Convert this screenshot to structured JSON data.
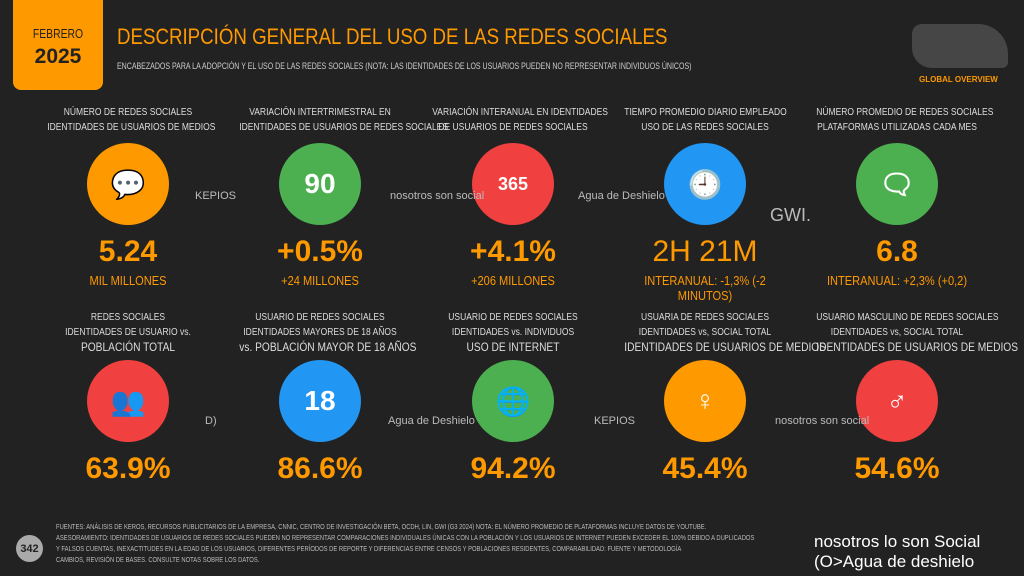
{
  "header": {
    "month": "FEBRERO",
    "year": "2025",
    "title": "DESCRIPCIÓN GENERAL DEL USO DE LAS REDES SOCIALES",
    "subtitle": "ENCABEZADOS PARA LA ADOPCIÓN Y EL USO DE LAS REDES SOCIALES (NOTA: LAS IDENTIDADES DE LOS USUARIOS PUEDEN NO REPRESENTAR INDIVIDUOS ÚNICOS)",
    "badge": "GLOBAL OVERVIEW"
  },
  "cards": [
    {
      "l1": "NÚMERO DE REDES SOCIALES",
      "l2": "IDENTIDADES DE USUARIOS DE MEDIOS",
      "l3": "",
      "value": "5.24",
      "sub": "MIL MILLONES",
      "icon": "chat-bubbles-icon",
      "glyph": "💬",
      "color": "#ff9900"
    },
    {
      "l1": "VARIACIÓN INTERTRIMESTRAL EN",
      "l2": "IDENTIDADES DE USUARIOS DE REDES SOCIALES",
      "l3": "",
      "value": "+0.5%",
      "sub": "+24 MILLONES",
      "icon": "calendar-90-icon",
      "glyph": "90",
      "color": "#4caf50"
    },
    {
      "l1": "VARIACIÓN INTERANUAL EN IDENTIDADES",
      "l2": "DE USUARIOS DE REDES SOCIALES",
      "l3": "",
      "value": "+4.1%",
      "sub": "+206 MILLONES",
      "icon": "calendar-365-icon",
      "glyph": "365",
      "color": "#f04040"
    },
    {
      "l1": "TIEMPO PROMEDIO DIARIO EMPLEADO",
      "l2": "USO DE LAS REDES SOCIALES",
      "l3": "",
      "value": "2H 21M",
      "sub": "INTERANUAL: -1,3% (-2 MINUTOS)",
      "icon": "clock-icon",
      "glyph": "🕘",
      "color": "#2196f3"
    },
    {
      "l1": "NÚMERO PROMEDIO DE REDES SOCIALES",
      "l2": "PLATAFORMAS UTILIZADAS CADA MES",
      "l3": "",
      "value": "6.8",
      "sub": "INTERANUAL: +2,3% (+0,2)",
      "icon": "stacked-apps-icon",
      "glyph": "🗨",
      "color": "#4caf50"
    },
    {
      "l1": "REDES SOCIALES",
      "l2": "IDENTIDADES DE USUARIO vs.",
      "l3": "POBLACIÓN TOTAL",
      "value": "63.9%",
      "sub": "",
      "icon": "people-group-icon",
      "glyph": "👥",
      "color": "#f04040"
    },
    {
      "l1": "USUARIO DE REDES SOCIALES",
      "l2": "IDENTIDADES MAYORES DE 18 AÑOS",
      "l3": "vs. POBLACIÓN MAYOR DE 18 AÑOS",
      "value": "86.6%",
      "sub": "",
      "icon": "adults-18-icon",
      "glyph": "18",
      "color": "#2196f3"
    },
    {
      "l1": "USUARIO DE REDES SOCIALES",
      "l2": "IDENTIDADES vs. INDIVIDUOS",
      "l3": "USO DE INTERNET",
      "value": "94.2%",
      "sub": "",
      "icon": "globe-icon",
      "glyph": "🌐",
      "color": "#4caf50"
    },
    {
      "l1": "USUARIA DE REDES SOCIALES",
      "l2": "IDENTIDADES vs, SOCIAL TOTAL",
      "l3": "IDENTIDADES DE USUARIOS DE MEDIOS",
      "value": "45.4%",
      "sub": "",
      "icon": "female-icon",
      "glyph": "♀",
      "color": "#ff9900"
    },
    {
      "l1": "USUARIO MASCULINO DE REDES SOCIALES",
      "l2": "IDENTIDADES vs, SOCIAL TOTAL",
      "l3": "IDENTIDADES DE USUARIOS DE MEDIOS",
      "value": "54.6%",
      "sub": "",
      "icon": "male-icon",
      "glyph": "♂",
      "color": "#f04040"
    }
  ],
  "logos": [
    "KEPIOS",
    "nosotros son social",
    "Agua de Deshielo",
    "GWI.",
    "D)",
    "Agua de Deshielo",
    "KEPIOS",
    "nosotros son social"
  ],
  "footer": {
    "page": "342",
    "lines": [
      "FUENTES: ANÁLISIS DE KEROS, RECURSOS PUBLICITARIOS DE LA EMPRESA, CNNIC, CENTRO DE INVESTIGACIÓN BETA, OCDH, LIN, GWI (G3 2024) NOTA: EL NÚMERO PROMEDIO DE PLATAFORMAS INCLUYE DATOS DE YOUTUBE.",
      "ASESORAMIENTO: IDENTIDADES DE USUARIOS DE REDES SOCIALES PUEDEN NO REPRESENTAR COMPARACIONES INDIVIDUALES ÚNICAS CON LA POBLACIÓN Y LOS USUARIOS DE INTERNET PUEDEN EXCEDER EL 100% DEBIDO A DUPLICADOS",
      "Y FALSOS CUENTAS, INEXACTITUDES EN LA EDAD DE LOS USUARIOS, DIFERENTES PERÍODOS DE REPORTE Y DIFERENCIAS ENTRE CENSOS Y POBLACIONES RESIDENTES, COMPARABILIDAD: FUENTE Y METODOLOGÍA",
      "CAMBIOS, REVISIÓN DE BASES. CONSULTE NOTAS SOBRE LOS DATOS."
    ],
    "brand": "nosotros lo son Social (O>Agua de deshielo"
  }
}
